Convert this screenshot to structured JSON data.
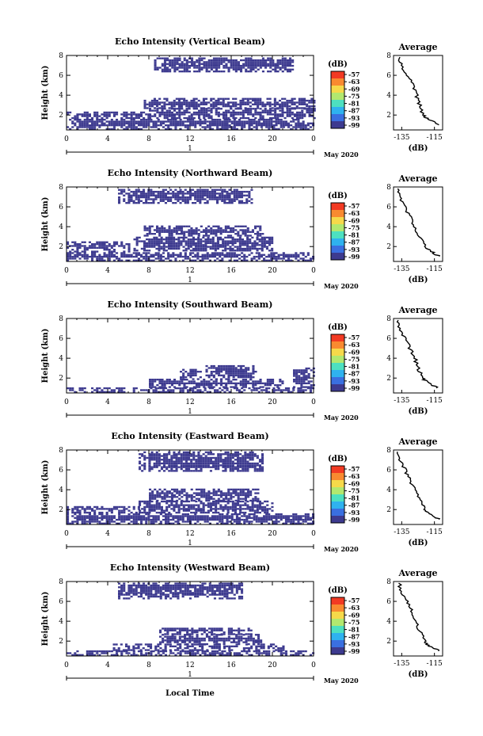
{
  "colorbar": {
    "unit_label": "(dB)",
    "ticks": [
      "-57",
      "-63",
      "-69",
      "-75",
      "-81",
      "-87",
      "-93",
      "-99"
    ],
    "colors": [
      "#f23a23",
      "#f98a30",
      "#f6d94a",
      "#b2e86f",
      "#4de0c0",
      "#2fb2ef",
      "#3a6fe0",
      "#3d3a8f"
    ]
  },
  "shared": {
    "x_ticks": [
      "0",
      "4",
      "8",
      "12",
      "16",
      "20",
      "0"
    ],
    "y_ticks": [
      "2",
      "4",
      "6",
      "8"
    ],
    "date_tick": "1",
    "date_label": "May 2020",
    "x_axis_label": "Local Time",
    "y_axis_label": "Height (km)",
    "avg_title": "Average",
    "avg_x_ticks": [
      "-135",
      "-115"
    ],
    "avg_x_label": "(dB)",
    "avg_y_ticks": [
      "2",
      "4",
      "6",
      "8"
    ],
    "echo_color": "#3d3a8f"
  },
  "chart_data": [
    {
      "type": "heatmap",
      "title": "Echo Intensity (Vertical Beam)",
      "x_range_hours": [
        0,
        24
      ],
      "y_range_km": [
        0.5,
        8
      ],
      "echo_regions": [
        {
          "t0": 0,
          "t1": 24,
          "h0": 0.5,
          "h1": 1.6
        },
        {
          "t0": 0,
          "t1": 8,
          "h0": 1.6,
          "h1": 2.3
        },
        {
          "t0": 8,
          "t1": 24,
          "h0": 1.6,
          "h1": 2.6
        },
        {
          "t0": 7.5,
          "t1": 24,
          "h0": 2.6,
          "h1": 3.6
        },
        {
          "t0": 8.5,
          "t1": 22,
          "h0": 6.3,
          "h1": 7.8
        }
      ],
      "average_profile": {
        "x_label": "(dB)",
        "x_range": [
          -140,
          -110
        ],
        "height_km": [
          1,
          1.5,
          2,
          3,
          4,
          5,
          6,
          7,
          8
        ],
        "db": [
          -112,
          -118,
          -122,
          -124,
          -126,
          -128,
          -132,
          -135,
          -137
        ]
      }
    },
    {
      "type": "heatmap",
      "title": "Echo Intensity (Northward Beam)",
      "x_range_hours": [
        0,
        24
      ],
      "y_range_km": [
        0.5,
        8
      ],
      "echo_regions": [
        {
          "t0": 0,
          "t1": 24,
          "h0": 0.5,
          "h1": 1.4
        },
        {
          "t0": 0,
          "t1": 6,
          "h0": 1.4,
          "h1": 2.4
        },
        {
          "t0": 6.5,
          "t1": 20,
          "h0": 1.5,
          "h1": 3.0
        },
        {
          "t0": 7.5,
          "t1": 19,
          "h0": 3.0,
          "h1": 4.0
        },
        {
          "t0": 5,
          "t1": 18,
          "h0": 6.3,
          "h1": 7.8
        }
      ],
      "average_profile": {
        "x_label": "(dB)",
        "x_range": [
          -140,
          -110
        ],
        "height_km": [
          1,
          1.5,
          2,
          3,
          4,
          5,
          6,
          7,
          8
        ],
        "db": [
          -112,
          -117,
          -121,
          -124,
          -127,
          -130,
          -133,
          -136,
          -138
        ]
      }
    },
    {
      "type": "heatmap",
      "title": "Echo Intensity (Southward Beam)",
      "x_range_hours": [
        0,
        24
      ],
      "y_range_km": [
        0.5,
        8
      ],
      "echo_regions": [
        {
          "t0": 0,
          "t1": 24,
          "h0": 0.5,
          "h1": 1.0
        },
        {
          "t0": 8,
          "t1": 21,
          "h0": 1.0,
          "h1": 1.8
        },
        {
          "t0": 11,
          "t1": 13,
          "h0": 1.8,
          "h1": 2.8
        },
        {
          "t0": 13.5,
          "t1": 18.5,
          "h0": 1.8,
          "h1": 3.2
        },
        {
          "t0": 22,
          "t1": 24,
          "h0": 1.0,
          "h1": 3.0
        }
      ],
      "average_profile": {
        "x_label": "(dB)",
        "x_range": [
          -140,
          -110
        ],
        "height_km": [
          1,
          1.5,
          2,
          3,
          4,
          5,
          6,
          7,
          8
        ],
        "db": [
          -113,
          -119,
          -122,
          -125,
          -127,
          -130,
          -133,
          -136,
          -138
        ]
      }
    },
    {
      "type": "heatmap",
      "title": "Echo Intensity (Eastward Beam)",
      "x_range_hours": [
        0,
        24
      ],
      "y_range_km": [
        0.5,
        8
      ],
      "echo_regions": [
        {
          "t0": 0,
          "t1": 24,
          "h0": 0.5,
          "h1": 1.6
        },
        {
          "t0": 0,
          "t1": 7,
          "h0": 1.6,
          "h1": 2.3
        },
        {
          "t0": 7,
          "t1": 20,
          "h0": 1.6,
          "h1": 2.8
        },
        {
          "t0": 8,
          "t1": 18.5,
          "h0": 2.8,
          "h1": 4.0
        },
        {
          "t0": 7,
          "t1": 19,
          "h0": 5.8,
          "h1": 7.8
        }
      ],
      "average_profile": {
        "x_label": "(dB)",
        "x_range": [
          -140,
          -110
        ],
        "height_km": [
          1,
          1.5,
          2,
          3,
          4,
          5,
          6,
          7,
          8
        ],
        "db": [
          -112,
          -117,
          -121,
          -124,
          -127,
          -130,
          -133,
          -136,
          -138
        ]
      }
    },
    {
      "type": "heatmap",
      "title": "Echo Intensity (Westward Beam)",
      "x_range_hours": [
        0,
        24
      ],
      "y_range_km": [
        0.5,
        8
      ],
      "echo_regions": [
        {
          "t0": 0,
          "t1": 24,
          "h0": 0.5,
          "h1": 1.0
        },
        {
          "t0": 4.5,
          "t1": 21,
          "h0": 1.0,
          "h1": 1.6
        },
        {
          "t0": 9,
          "t1": 19,
          "h0": 1.6,
          "h1": 2.6
        },
        {
          "t0": 9,
          "t1": 18,
          "h0": 2.6,
          "h1": 3.3
        },
        {
          "t0": 5,
          "t1": 17,
          "h0": 6.2,
          "h1": 7.8
        }
      ],
      "average_profile": {
        "x_label": "(dB)",
        "x_range": [
          -140,
          -110
        ],
        "height_km": [
          1,
          1.5,
          2,
          3,
          4,
          5,
          6,
          7,
          8
        ],
        "db": [
          -112,
          -118,
          -121,
          -124,
          -126,
          -129,
          -132,
          -135,
          -137
        ]
      }
    }
  ]
}
